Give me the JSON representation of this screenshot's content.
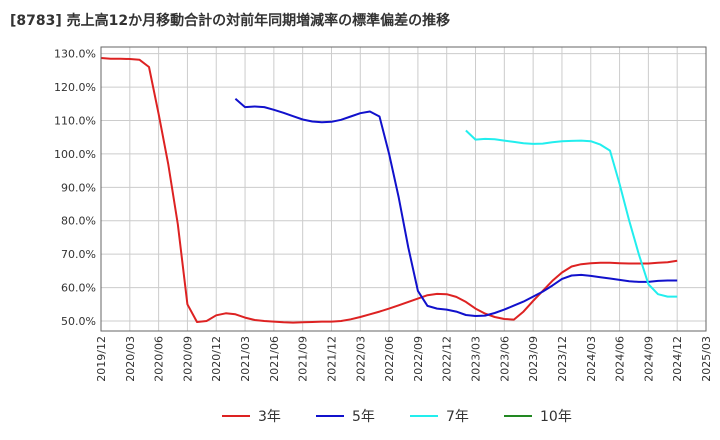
{
  "chart_data": {
    "type": "line",
    "title": "[8783]  売上高12か月移動合計の対前年同期増減率の標準偏差の推移",
    "xlabel": "",
    "ylabel": "",
    "ylim": [
      47.0,
      132.0
    ],
    "y_ticks": [
      "50.0%",
      "60.0%",
      "70.0%",
      "80.0%",
      "90.0%",
      "100.0%",
      "110.0%",
      "120.0%",
      "130.0%"
    ],
    "y_tick_values": [
      50,
      60,
      70,
      80,
      90,
      100,
      110,
      120,
      130
    ],
    "x_ticks": [
      "2019/12",
      "2020/03",
      "2020/06",
      "2020/09",
      "2020/12",
      "2021/03",
      "2021/06",
      "2021/09",
      "2021/12",
      "2022/03",
      "2022/06",
      "2022/09",
      "2022/12",
      "2023/03",
      "2023/06",
      "2023/09",
      "2023/12",
      "2024/03",
      "2024/06",
      "2024/09",
      "2024/12",
      "2025/03"
    ],
    "grid": true,
    "legend_position": "bottom",
    "series": [
      {
        "name": "3年",
        "color": "#dd2222",
        "start_index": 0,
        "values": [
          128.7,
          128.5,
          128.5,
          128.4,
          128.2,
          126.0,
          112.0,
          97.0,
          79.0,
          55.0,
          49.7,
          50.0,
          51.7,
          52.3,
          52.0,
          51.0,
          50.3,
          50.0,
          49.8,
          49.6,
          49.5,
          49.6,
          49.7,
          49.8,
          49.8,
          50.0,
          50.5,
          51.2,
          52.0,
          52.8,
          53.7,
          54.7,
          55.7,
          56.7,
          57.7,
          58.1,
          58.0,
          57.2,
          55.7,
          53.7,
          52.2,
          51.2,
          50.6,
          50.4,
          52.8,
          56.0,
          59.0,
          62.0,
          64.5,
          66.3,
          67.0,
          67.3,
          67.4,
          67.4,
          67.3,
          67.2,
          67.2,
          67.2,
          67.4,
          67.6,
          68.0
        ]
      },
      {
        "name": "5年",
        "color": "#1111cc",
        "start_index": 14,
        "values": [
          116.5,
          114.0,
          114.2,
          114.0,
          113.2,
          112.3,
          111.3,
          110.3,
          109.7,
          109.5,
          109.6,
          110.2,
          111.2,
          112.2,
          112.7,
          111.2,
          100.0,
          87.0,
          72.0,
          59.0,
          54.5,
          53.7,
          53.4,
          52.8,
          51.8,
          51.5,
          51.6,
          52.4,
          53.4,
          54.6,
          55.8,
          57.3,
          58.8,
          60.6,
          62.6,
          63.6,
          63.8,
          63.5,
          63.1,
          62.7,
          62.3,
          61.9,
          61.7,
          61.7,
          62.0,
          62.1,
          62.1
        ]
      },
      {
        "name": "7年",
        "color": "#22eeee",
        "start_index": 38,
        "values": [
          107.0,
          104.3,
          104.5,
          104.4,
          104.0,
          103.6,
          103.2,
          103.0,
          103.1,
          103.5,
          103.8,
          103.9,
          104.0,
          103.8,
          102.8,
          101.0,
          91.0,
          80.0,
          70.0,
          61.0,
          58.0,
          57.3,
          57.3
        ]
      },
      {
        "name": "10年",
        "color": "#228822",
        "start_index": 0,
        "values": []
      }
    ]
  }
}
